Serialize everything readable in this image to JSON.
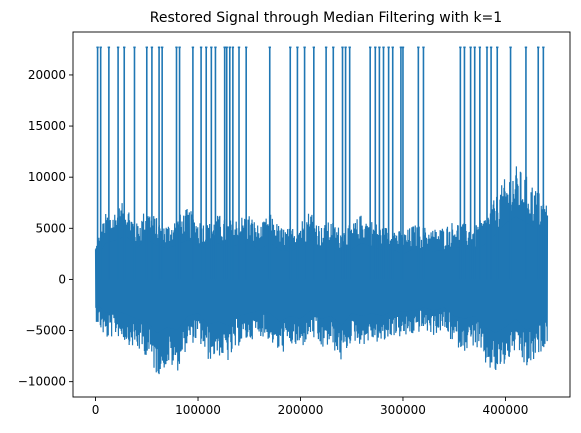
{
  "chart_data": {
    "type": "line",
    "title": "Restored Signal through Median Filtering with k=1",
    "xlabel": "",
    "ylabel": "",
    "xlim": [
      -22000,
      463000
    ],
    "ylim": [
      -11500,
      24200
    ],
    "x_ticks": [
      0,
      100000,
      200000,
      300000,
      400000
    ],
    "x_tick_labels": [
      "0",
      "100000",
      "200000",
      "300000",
      "400000"
    ],
    "y_ticks": [
      -10000,
      -5000,
      0,
      5000,
      10000,
      15000,
      20000
    ],
    "y_tick_labels": [
      "−10000",
      "−5000",
      "0",
      "5000",
      "10000",
      "15000",
      "20000"
    ],
    "grid": false,
    "series_color": "#1f77b4",
    "x_range": [
      0,
      441000
    ],
    "spike_value": 22700,
    "spike_x": [
      2000,
      5000,
      13000,
      22000,
      28000,
      38000,
      50000,
      55000,
      62000,
      65000,
      79000,
      82000,
      95000,
      103000,
      108000,
      113000,
      117000,
      126000,
      128000,
      131000,
      134000,
      140000,
      147000,
      170000,
      190000,
      197000,
      204000,
      213000,
      225000,
      232000,
      241000,
      244000,
      248000,
      268000,
      273000,
      277000,
      281000,
      286000,
      290000,
      298000,
      300000,
      315000,
      320000,
      356000,
      360000,
      366000,
      370000,
      375000,
      382000,
      386000,
      392000,
      405000,
      420000,
      432000,
      437000
    ],
    "envelope": {
      "x": [
        0,
        10000,
        20000,
        30000,
        40000,
        50000,
        60000,
        70000,
        80000,
        90000,
        100000,
        110000,
        120000,
        130000,
        140000,
        150000,
        160000,
        170000,
        180000,
        190000,
        200000,
        210000,
        220000,
        230000,
        240000,
        250000,
        260000,
        270000,
        280000,
        290000,
        300000,
        310000,
        320000,
        330000,
        340000,
        350000,
        360000,
        370000,
        380000,
        390000,
        400000,
        410000,
        420000,
        430000,
        441000
      ],
      "upper": [
        3500,
        6500,
        7000,
        7800,
        5500,
        7200,
        6000,
        5500,
        6200,
        7000,
        6000,
        5500,
        6400,
        5800,
        6200,
        6500,
        5200,
        6500,
        5200,
        5000,
        5800,
        7000,
        5200,
        5800,
        5000,
        5400,
        6500,
        5800,
        5200,
        5300,
        4500,
        5400,
        5200,
        5000,
        5200,
        5800,
        5500,
        5300,
        6200,
        8000,
        10000,
        11200,
        10200,
        9000,
        7500
      ],
      "lower": [
        -4000,
        -6000,
        -5500,
        -6200,
        -7000,
        -7500,
        -9500,
        -8500,
        -9000,
        -6500,
        -6000,
        -8000,
        -7500,
        -8200,
        -6500,
        -6000,
        -5500,
        -6000,
        -7500,
        -6500,
        -7000,
        -5500,
        -7000,
        -6500,
        -8200,
        -6000,
        -6500,
        -6000,
        -6500,
        -5500,
        -5800,
        -5500,
        -5000,
        -5500,
        -5000,
        -6500,
        -7000,
        -6500,
        -8500,
        -9500,
        -8500,
        -7000,
        -9000,
        -8000,
        -6000
      ]
    }
  }
}
